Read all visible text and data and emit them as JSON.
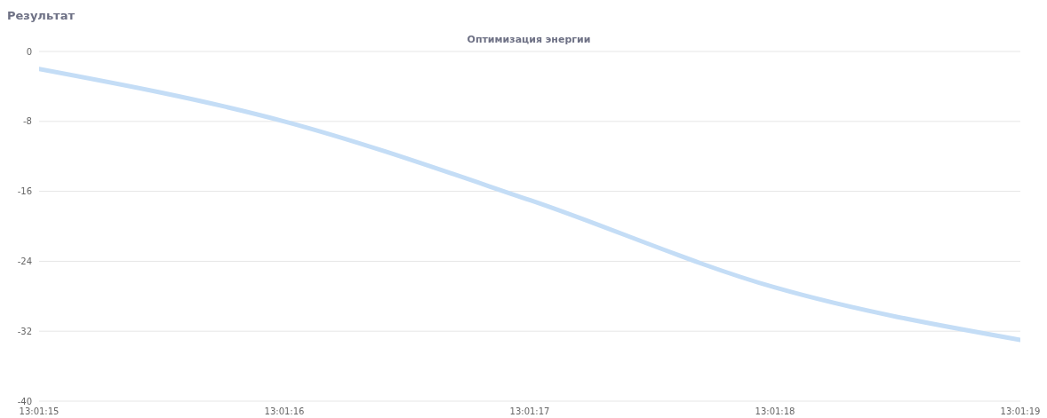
{
  "chart_data": {
    "type": "line",
    "title": "Результат",
    "subtitle": "Оптимизация энергии",
    "categories": [
      "13:01:15",
      "13:01:16",
      "13:01:17",
      "13:01:18",
      "13:01:19"
    ],
    "series": [
      {
        "color": "#c4ddf6",
        "values": [
          -2,
          -8,
          -17,
          -27,
          -33
        ]
      }
    ],
    "ylim": [
      -40,
      0
    ],
    "yticks": [
      -40,
      -32,
      -24,
      -16,
      -8,
      0
    ],
    "grid": "y",
    "legend": false,
    "marker": "none",
    "line_style": "solid"
  }
}
